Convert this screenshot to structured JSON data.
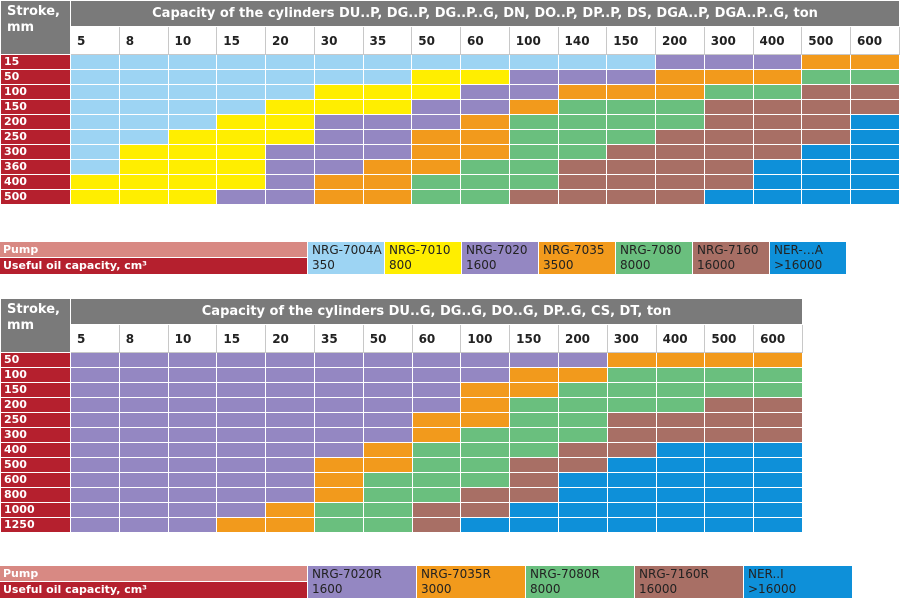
{
  "table1": {
    "corner": "Stroke, mm",
    "title": "Capacity of the cylinders DU..P, DG..P, DG..P..G, DN, DO..P, DP..P, DS, DGA..P, DGA..P..G, ton",
    "capacities": [
      "5",
      "8",
      "10",
      "15",
      "20",
      "30",
      "35",
      "50",
      "60",
      "100",
      "140",
      "150",
      "200",
      "300",
      "400",
      "500",
      "600"
    ],
    "strokes": [
      "15",
      "50",
      "100",
      "150",
      "200",
      "250",
      "300",
      "360",
      "400",
      "500"
    ],
    "grid": [
      [
        "A",
        "A",
        "A",
        "A",
        "A",
        "A",
        "A",
        "A",
        "A",
        "A",
        "A",
        "A",
        "C",
        "C",
        "C",
        "D",
        "D"
      ],
      [
        "A",
        "A",
        "A",
        "A",
        "A",
        "A",
        "A",
        "B",
        "B",
        "C",
        "C",
        "C",
        "D",
        "D",
        "D",
        "E",
        "E"
      ],
      [
        "A",
        "A",
        "A",
        "A",
        "A",
        "B",
        "B",
        "B",
        "C",
        "C",
        "D",
        "D",
        "D",
        "E",
        "E",
        "F",
        "F"
      ],
      [
        "A",
        "A",
        "A",
        "A",
        "B",
        "B",
        "B",
        "C",
        "C",
        "D",
        "E",
        "E",
        "E",
        "F",
        "F",
        "F",
        "F"
      ],
      [
        "A",
        "A",
        "A",
        "B",
        "B",
        "C",
        "C",
        "C",
        "D",
        "E",
        "E",
        "E",
        "E",
        "F",
        "F",
        "F",
        "G"
      ],
      [
        "A",
        "A",
        "B",
        "B",
        "B",
        "C",
        "C",
        "D",
        "D",
        "E",
        "E",
        "E",
        "F",
        "F",
        "F",
        "F",
        "G"
      ],
      [
        "A",
        "B",
        "B",
        "B",
        "C",
        "C",
        "C",
        "D",
        "D",
        "E",
        "E",
        "F",
        "F",
        "F",
        "F",
        "G",
        "G"
      ],
      [
        "A",
        "B",
        "B",
        "B",
        "C",
        "C",
        "D",
        "D",
        "E",
        "E",
        "F",
        "F",
        "F",
        "F",
        "G",
        "G",
        "G"
      ],
      [
        "B",
        "B",
        "B",
        "B",
        "C",
        "D",
        "D",
        "E",
        "E",
        "E",
        "F",
        "F",
        "F",
        "F",
        "G",
        "G",
        "G"
      ],
      [
        "B",
        "B",
        "B",
        "C",
        "C",
        "D",
        "D",
        "E",
        "E",
        "F",
        "F",
        "F",
        "F",
        "G",
        "G",
        "G",
        "G"
      ]
    ]
  },
  "legend1": {
    "pump_label": "Pump",
    "oil_label": "Useful oil capacity, cm³",
    "items": [
      {
        "pump": "NRG-7004A",
        "oil": "350",
        "code": "A"
      },
      {
        "pump": "NRG-7010",
        "oil": "800",
        "code": "B"
      },
      {
        "pump": "NRG-7020",
        "oil": "1600",
        "code": "C"
      },
      {
        "pump": "NRG-7035",
        "oil": "3500",
        "code": "D"
      },
      {
        "pump": "NRG-7080",
        "oil": "8000",
        "code": "E"
      },
      {
        "pump": "NRG-7160",
        "oil": "16000",
        "code": "F"
      },
      {
        "pump": "NER-…A",
        "oil": ">16000",
        "code": "G"
      }
    ]
  },
  "table2": {
    "corner": "Stroke, mm",
    "title": "Capacity of the cylinders DU..G, DG..G, DO..G, DP..G, CS, DT, ton",
    "capacities": [
      "5",
      "8",
      "10",
      "15",
      "20",
      "35",
      "50",
      "60",
      "100",
      "150",
      "200",
      "300",
      "400",
      "500",
      "600"
    ],
    "strokes": [
      "50",
      "100",
      "150",
      "200",
      "250",
      "300",
      "400",
      "500",
      "600",
      "800",
      "1000",
      "1250"
    ],
    "grid": [
      [
        "C",
        "C",
        "C",
        "C",
        "C",
        "C",
        "C",
        "C",
        "C",
        "C",
        "C",
        "D",
        "D",
        "D",
        "D"
      ],
      [
        "C",
        "C",
        "C",
        "C",
        "C",
        "C",
        "C",
        "C",
        "C",
        "D",
        "D",
        "E",
        "E",
        "E",
        "E"
      ],
      [
        "C",
        "C",
        "C",
        "C",
        "C",
        "C",
        "C",
        "C",
        "D",
        "D",
        "E",
        "E",
        "E",
        "E",
        "E"
      ],
      [
        "C",
        "C",
        "C",
        "C",
        "C",
        "C",
        "C",
        "C",
        "D",
        "E",
        "E",
        "E",
        "E",
        "F",
        "F"
      ],
      [
        "C",
        "C",
        "C",
        "C",
        "C",
        "C",
        "C",
        "D",
        "D",
        "E",
        "E",
        "F",
        "F",
        "F",
        "F"
      ],
      [
        "C",
        "C",
        "C",
        "C",
        "C",
        "C",
        "C",
        "D",
        "E",
        "E",
        "E",
        "F",
        "F",
        "F",
        "F"
      ],
      [
        "C",
        "C",
        "C",
        "C",
        "C",
        "C",
        "D",
        "E",
        "E",
        "E",
        "F",
        "F",
        "G",
        "G",
        "G"
      ],
      [
        "C",
        "C",
        "C",
        "C",
        "C",
        "D",
        "D",
        "E",
        "E",
        "F",
        "F",
        "G",
        "G",
        "G",
        "G"
      ],
      [
        "C",
        "C",
        "C",
        "C",
        "C",
        "D",
        "E",
        "E",
        "E",
        "F",
        "G",
        "G",
        "G",
        "G",
        "G"
      ],
      [
        "C",
        "C",
        "C",
        "C",
        "C",
        "D",
        "E",
        "E",
        "F",
        "F",
        "G",
        "G",
        "G",
        "G",
        "G"
      ],
      [
        "C",
        "C",
        "C",
        "C",
        "D",
        "E",
        "E",
        "F",
        "F",
        "G",
        "G",
        "G",
        "G",
        "G",
        "G"
      ],
      [
        "C",
        "C",
        "C",
        "D",
        "D",
        "E",
        "E",
        "F",
        "G",
        "G",
        "G",
        "G",
        "G",
        "G",
        "G"
      ]
    ]
  },
  "legend2": {
    "pump_label": "Pump",
    "oil_label": "Useful oil capacity, cm³",
    "items": [
      {
        "pump": "NRG-7020R",
        "oil": "1600",
        "code": "C"
      },
      {
        "pump": "NRG-7035R",
        "oil": "3000",
        "code": "D"
      },
      {
        "pump": "NRG-7080R",
        "oil": "8000",
        "code": "E"
      },
      {
        "pump": "NRG-7160R",
        "oil": "16000",
        "code": "F"
      },
      {
        "pump": "NER..I",
        "oil": ">16000",
        "code": "G"
      }
    ]
  },
  "colors": {
    "A": "#9dd4f3",
    "B": "#ffee00",
    "C": "#9487c2",
    "D": "#f29a1c",
    "E": "#6abf7e",
    "F": "#a86f65",
    "G": "#0e90d9"
  }
}
